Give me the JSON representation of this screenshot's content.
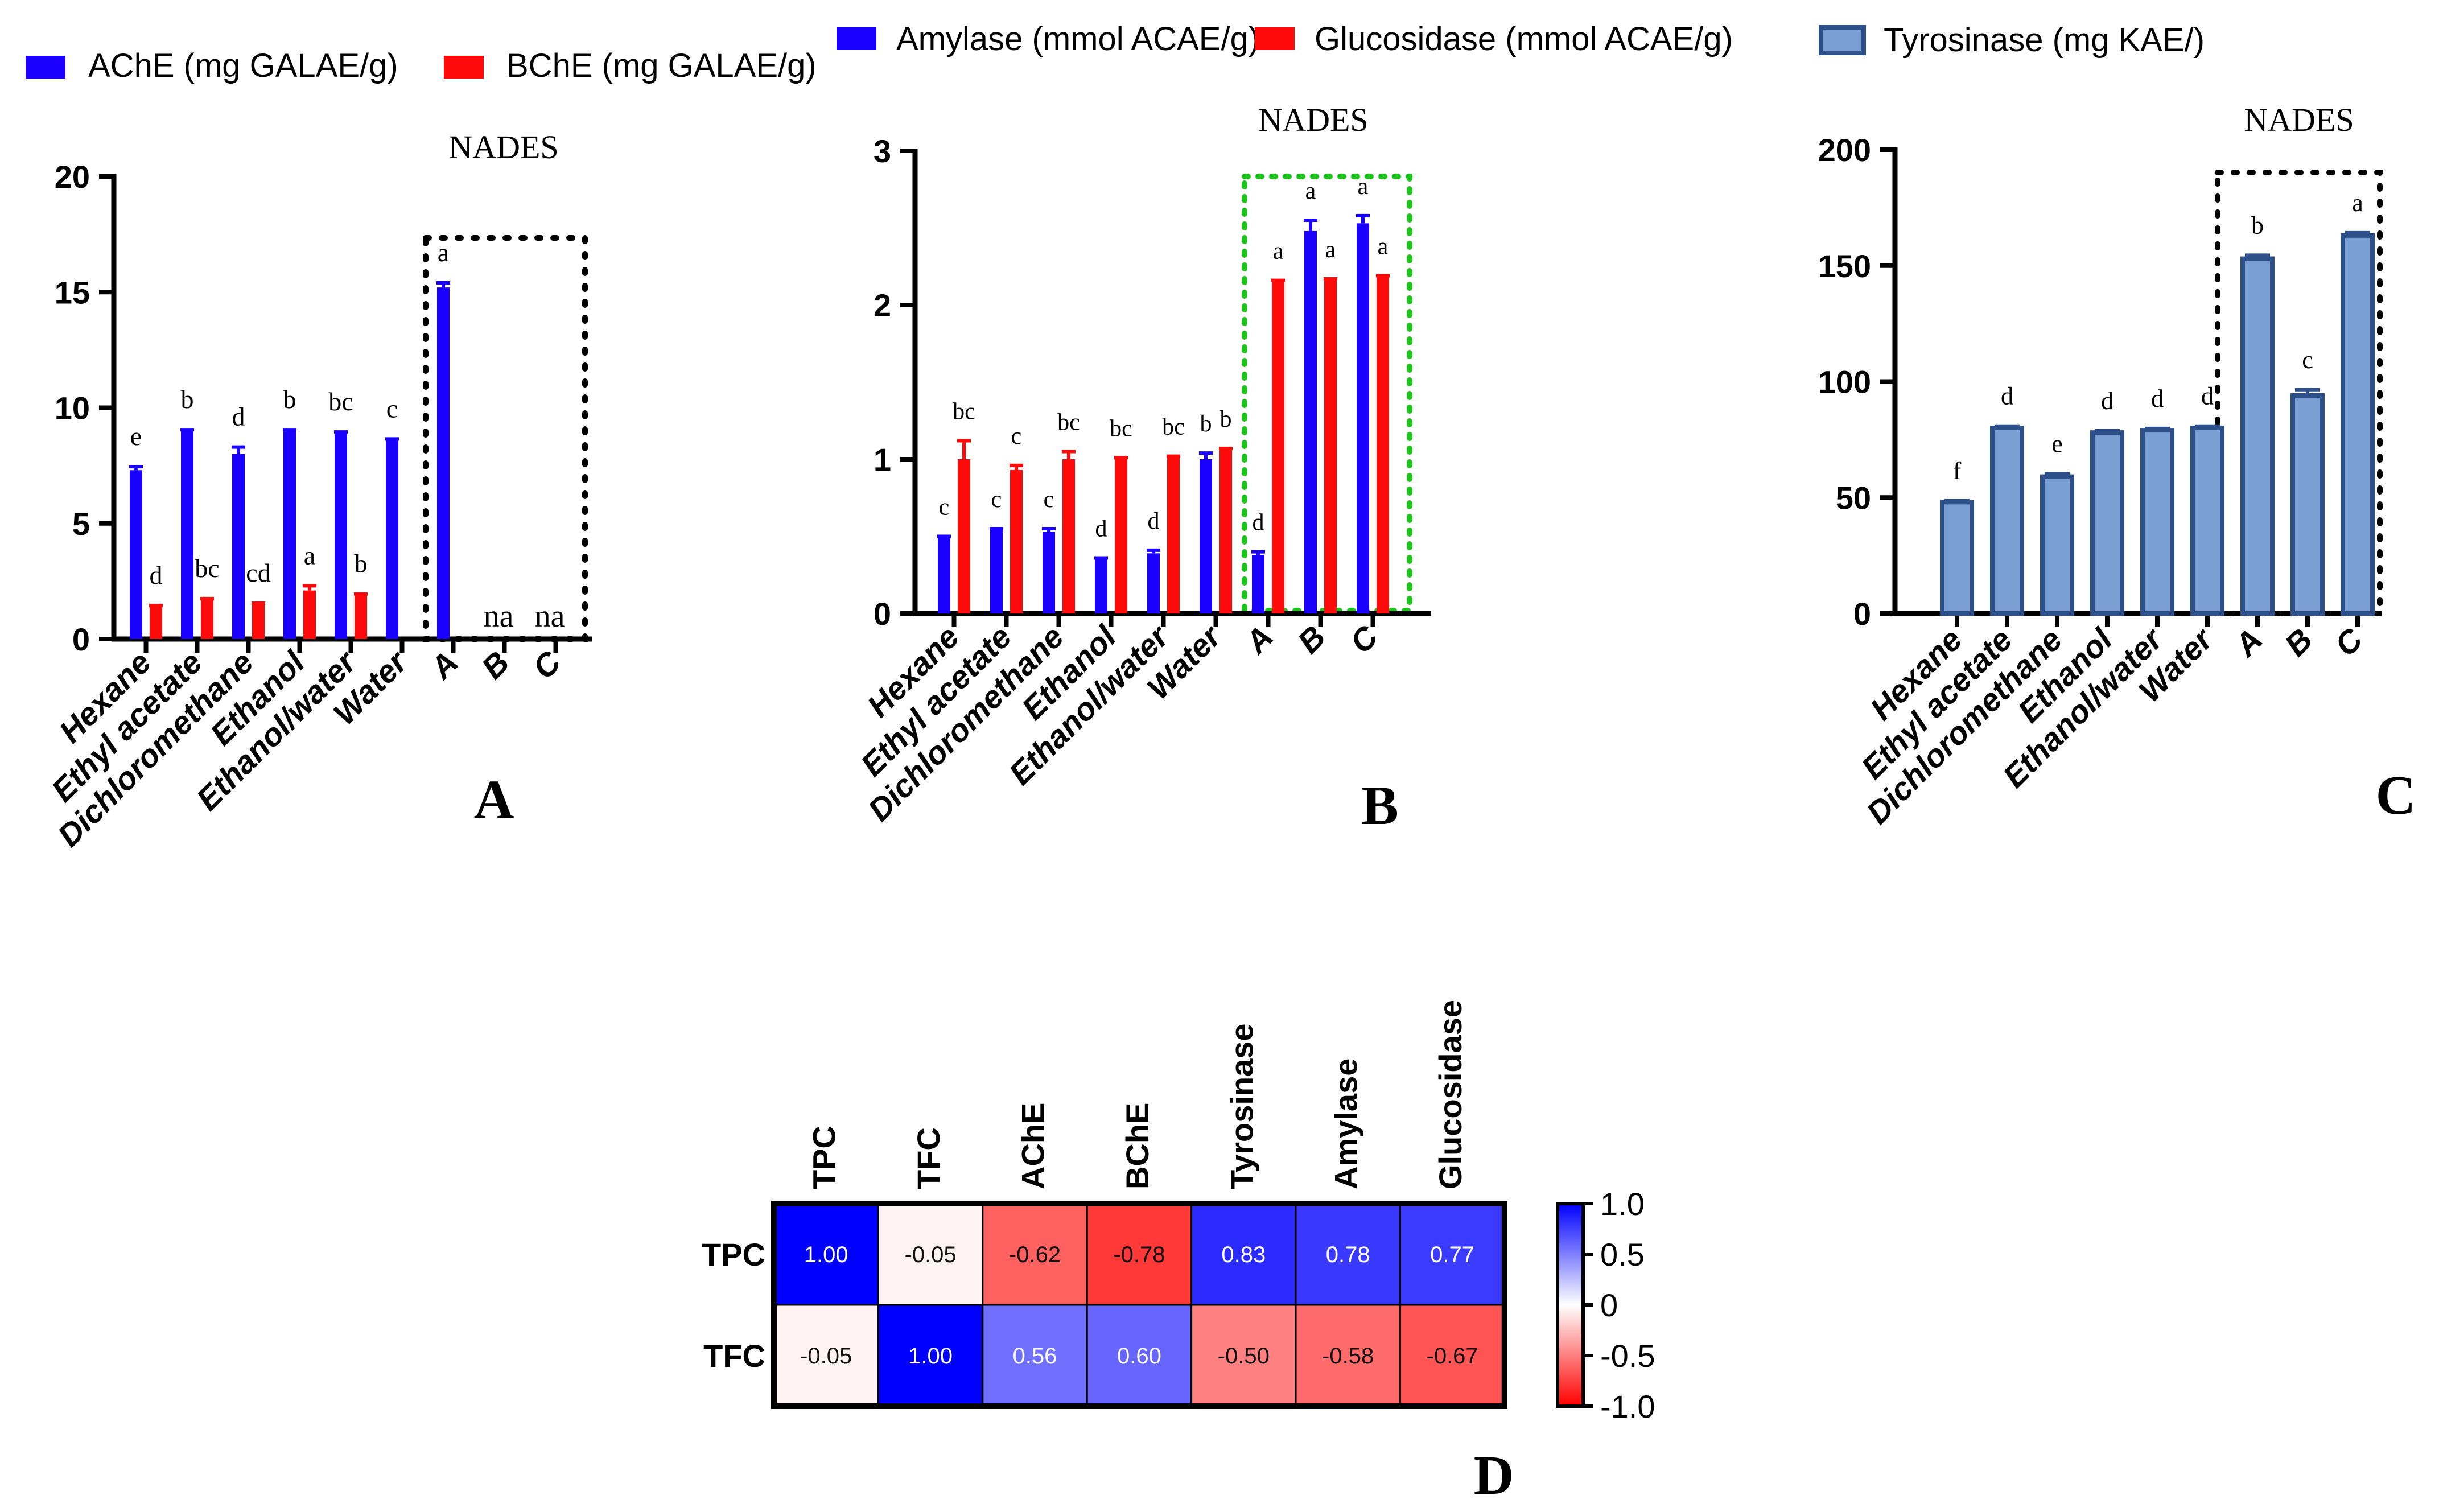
{
  "colors": {
    "blue": "#1a00ff",
    "red": "#ff0a0a",
    "steel": "#7b9fd4",
    "steel_edge": "#2d4f8a",
    "dots": "#000000",
    "green_dots": "#1ec41e"
  },
  "chart_data": [
    {
      "id": "A",
      "type": "bar",
      "panel_label": "A",
      "subtitle": "NADES",
      "legend": [
        "AChE (mg GALAE/g)",
        "BChE (mg GALAE/g)"
      ],
      "categories": [
        "Hexane",
        "Ethyl acetate",
        "Dichloromethane",
        "Ethanol",
        "Ethanol/water",
        "Water",
        "A",
        "B",
        "C"
      ],
      "series": [
        {
          "name": "AChE (mg GALAE/g)",
          "color": "#1a00ff",
          "values": [
            7.3,
            9.0,
            8.0,
            9.0,
            8.9,
            8.6,
            15.2,
            null,
            null
          ],
          "errors": [
            0.15,
            0.05,
            0.3,
            0.05,
            0.05,
            0.05,
            0.2,
            0,
            0
          ],
          "letters": [
            "e",
            "b",
            "d",
            "b",
            "bc",
            "c",
            "a",
            "na",
            "na"
          ]
        },
        {
          "name": "BChE (mg GALAE/g)",
          "color": "#ff0a0a",
          "values": [
            1.4,
            1.7,
            1.5,
            2.1,
            1.9,
            null,
            null,
            null,
            null
          ],
          "errors": [
            0.05,
            0.05,
            0.05,
            0.2,
            0.05,
            0,
            0,
            0,
            0
          ],
          "letters": [
            "d",
            "bc",
            "cd",
            "a",
            "b",
            "",
            "",
            "",
            ""
          ]
        }
      ],
      "ylim": [
        0,
        20
      ],
      "yticks": [
        0,
        5,
        10,
        15,
        20
      ],
      "xlabel": "",
      "ylabel": ""
    },
    {
      "id": "B",
      "type": "bar",
      "panel_label": "B",
      "subtitle": "NADES",
      "legend": [
        "Amylase (mmol ACAE/g)",
        "Glucosidase (mmol ACAE/g)"
      ],
      "categories": [
        "Hexane",
        "Ethyl acetate",
        "Dichloromethane",
        "Ethanol",
        "Ethanol/water",
        "Water",
        "A",
        "B",
        "C"
      ],
      "series": [
        {
          "name": "Amylase (mmol ACAE/g)",
          "color": "#1a00ff",
          "values": [
            0.49,
            0.54,
            0.53,
            0.35,
            0.39,
            1.0,
            0.38,
            2.48,
            2.53
          ],
          "errors": [
            0.01,
            0.01,
            0.02,
            0.01,
            0.02,
            0.04,
            0.02,
            0.07,
            0.05
          ],
          "letters": [
            "c",
            "c",
            "c",
            "d",
            "d",
            "b",
            "d",
            "a",
            "a"
          ]
        },
        {
          "name": "Glucosidase (mmol ACAE/g)",
          "color": "#ff0a0a",
          "values": [
            1.0,
            0.93,
            1.0,
            1.0,
            1.01,
            1.06,
            2.15,
            2.16,
            2.18
          ],
          "errors": [
            0.12,
            0.03,
            0.05,
            0.01,
            0.01,
            0.01,
            0.01,
            0.01,
            0.01
          ],
          "letters": [
            "bc",
            "c",
            "bc",
            "bc",
            "bc",
            "b",
            "a",
            "a",
            "a"
          ]
        }
      ],
      "ylim": [
        0,
        3
      ],
      "yticks": [
        0,
        1,
        2,
        3
      ],
      "xlabel": "",
      "ylabel": ""
    },
    {
      "id": "C",
      "type": "bar",
      "panel_label": "C",
      "subtitle": "NADES",
      "legend": [
        "Tyrosinase (mg KAE/)"
      ],
      "categories": [
        "Hexane",
        "Ethyl acetate",
        "Dichloromethane",
        "Ethanol",
        "Ethanol/water",
        "Water",
        "A",
        "B",
        "C"
      ],
      "series": [
        {
          "name": "Tyrosinase (mg KAE/)",
          "color": "#7b9fd4",
          "values": [
            48,
            80,
            59,
            78,
            79,
            80,
            153,
            94,
            163
          ],
          "errors": [
            0.6,
            0.8,
            1.2,
            0.8,
            0.8,
            0.8,
            1.5,
            2.5,
            1.2
          ],
          "letters": [
            "f",
            "d",
            "e",
            "d",
            "d",
            "d",
            "b",
            "c",
            "a"
          ]
        }
      ],
      "ylim": [
        0,
        200
      ],
      "yticks": [
        0,
        50,
        100,
        150,
        200
      ],
      "xlabel": "",
      "ylabel": ""
    },
    {
      "id": "D",
      "type": "heatmap",
      "panel_label": "D",
      "columns": [
        "TPC",
        "TFC",
        "AChE",
        "BChE",
        "Tyrosinase",
        "Amylase",
        "Glucosidase"
      ],
      "rows": [
        "TPC",
        "TFC"
      ],
      "values": [
        [
          1.0,
          -0.05,
          -0.62,
          -0.78,
          0.83,
          0.78,
          0.77
        ],
        [
          -0.05,
          1.0,
          0.56,
          0.6,
          -0.5,
          -0.58,
          -0.67
        ]
      ],
      "labels": [
        [
          "1.00",
          "-0.05",
          "-0.62",
          "-0.78",
          "0.83",
          "0.78",
          "0.77"
        ],
        [
          "-0.05",
          "1.00",
          "0.56",
          "0.60",
          "-0.50",
          "-0.58",
          "-0.67"
        ]
      ],
      "colorbar": {
        "range": [
          -1,
          1
        ],
        "ticks": [
          1.0,
          0.5,
          0,
          -0.5,
          -1.0
        ],
        "tick_labels": [
          "1.0",
          "0.5",
          "0",
          "-0.5",
          "-1.0"
        ]
      }
    }
  ]
}
